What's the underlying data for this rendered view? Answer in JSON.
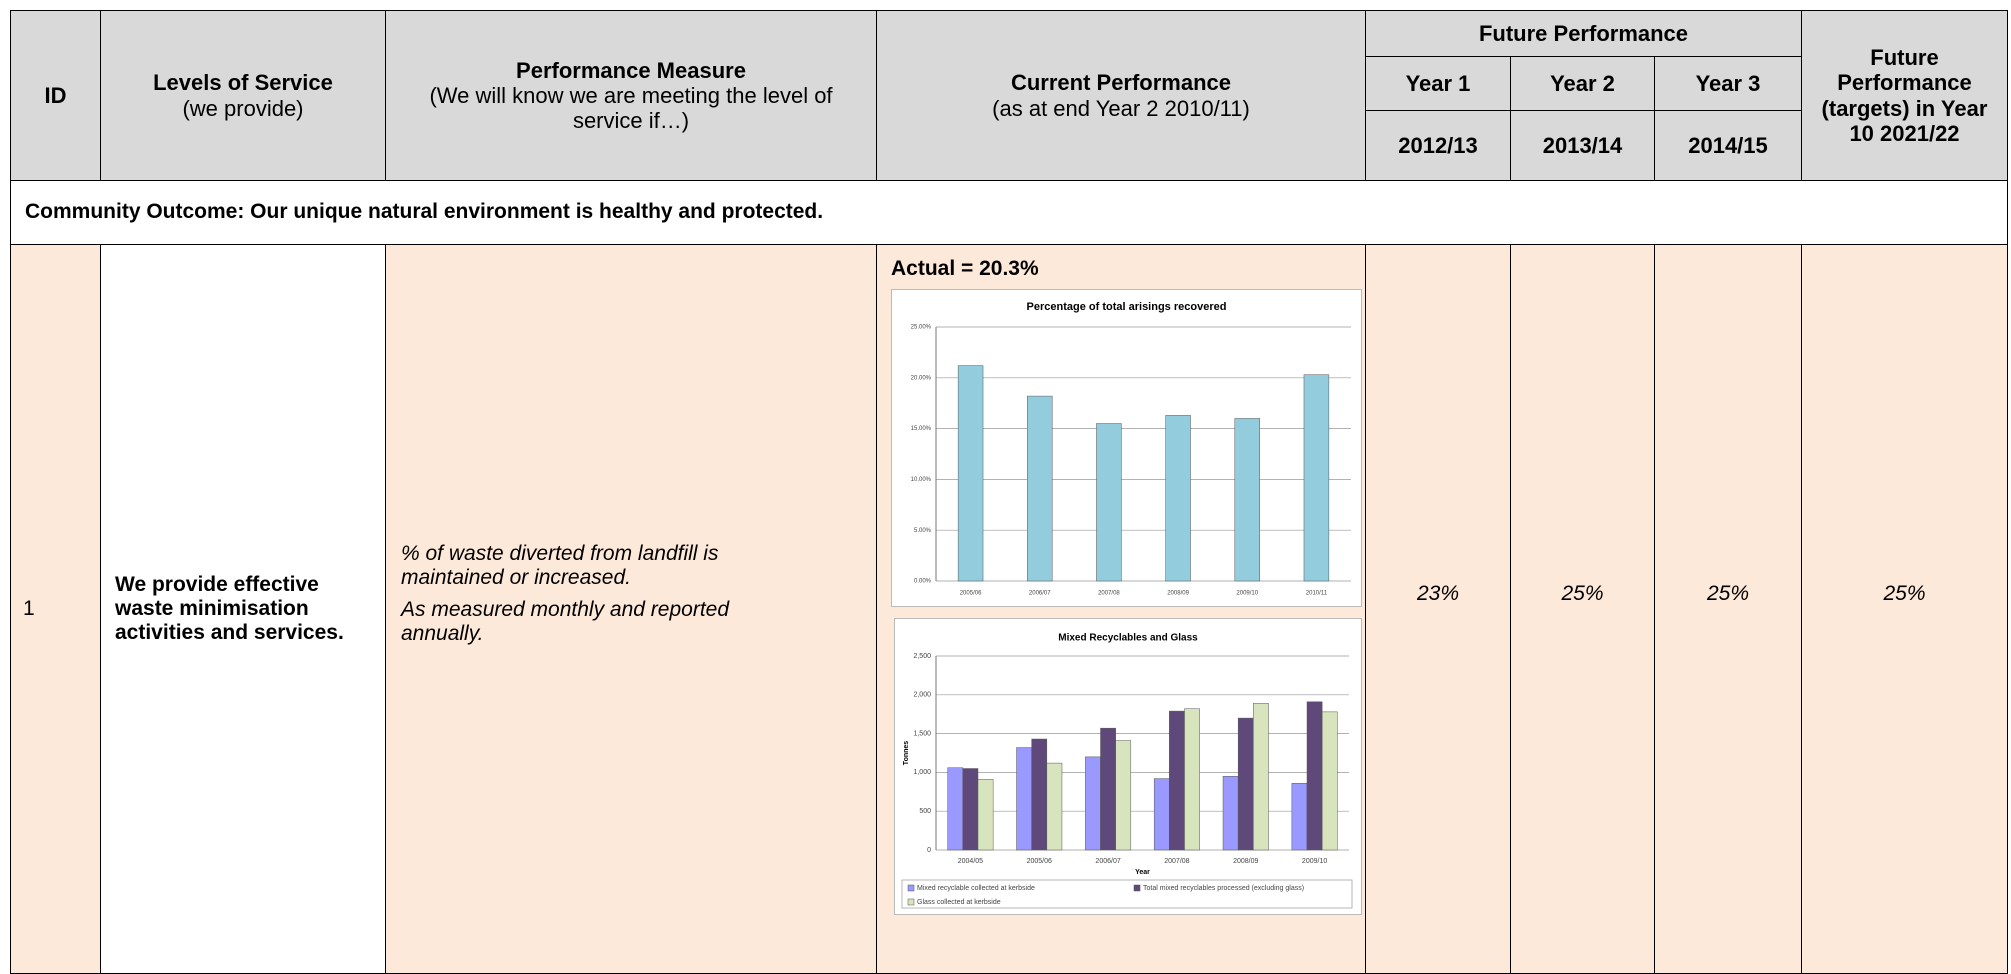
{
  "header": {
    "id": "ID",
    "levels": [
      "Levels of Service",
      "(we provide)"
    ],
    "measure": [
      "Performance Measure",
      "(We will know we are meeting the level of service if…)"
    ],
    "current": [
      "Current Performance",
      "(as at end Year 2 2010/11)"
    ],
    "future": "Future Performance",
    "years": [
      "Year 1",
      "Year 2",
      "Year 3"
    ],
    "year_dates": [
      "2012/13",
      "2013/14",
      "2014/15"
    ],
    "target": "Future Performance (targets) in Year 10 2021/22"
  },
  "outcome": "Community Outcome: Our unique natural environment is healthy and protected.",
  "row": {
    "id": "1",
    "level": "We provide effective waste minimisation activities and services.",
    "measure": [
      "% of waste diverted from landfill is maintained or increased.",
      "As measured monthly and reported annually."
    ],
    "current_label": "Actual = 20.3%",
    "targets": [
      "23%",
      "25%",
      "25%",
      "25%"
    ]
  },
  "chart_data": [
    {
      "type": "bar",
      "title": "Percentage of total arisings recovered",
      "categories": [
        "2005/06",
        "2006/07",
        "2007/08",
        "2008/09",
        "2009/10",
        "2010/11"
      ],
      "series": [
        {
          "name": null,
          "color": "#93cddd",
          "values": [
            21.2,
            18.2,
            15.5,
            16.3,
            16.0,
            20.3
          ]
        }
      ],
      "ylim": [
        0,
        25
      ],
      "yticks": [
        {
          "value": 0,
          "label": "0.00%"
        },
        {
          "value": 5,
          "label": "5.00%"
        },
        {
          "value": 10,
          "label": "10.00%"
        },
        {
          "value": 15,
          "label": "15.00%"
        },
        {
          "value": 20,
          "label": "20.00%"
        },
        {
          "value": 25,
          "label": "25.00%"
        }
      ],
      "grid": true
    },
    {
      "type": "bar",
      "title": "Mixed Recyclables and Glass",
      "ylabel": "Tonnes",
      "xlabel": "Year",
      "categories": [
        "2004/05",
        "2005/06",
        "2006/07",
        "2007/08",
        "2008/09",
        "2009/10"
      ],
      "series": [
        {
          "name": "Mixed recyclable collected at kerbside",
          "color": "#9999ff",
          "values": [
            1060,
            1320,
            1200,
            920,
            950,
            860
          ]
        },
        {
          "name": "Total mixed recyclables processed (excluding glass)",
          "color": "#5f497a",
          "values": [
            1050,
            1430,
            1570,
            1790,
            1700,
            1910
          ]
        },
        {
          "name": "Glass collected at kerbside",
          "color": "#d7e4bd",
          "values": [
            910,
            1120,
            1410,
            1820,
            1890,
            1780
          ]
        }
      ],
      "ylim": [
        0,
        2500
      ],
      "yticks": [
        0,
        500,
        {
          "value": 1000,
          "label": "1,000"
        },
        {
          "value": 1500,
          "label": "1,500"
        },
        {
          "value": 2000,
          "label": "2,000"
        },
        {
          "value": 2500,
          "label": "2,500"
        }
      ],
      "grid": true,
      "legend": "bottom"
    }
  ]
}
